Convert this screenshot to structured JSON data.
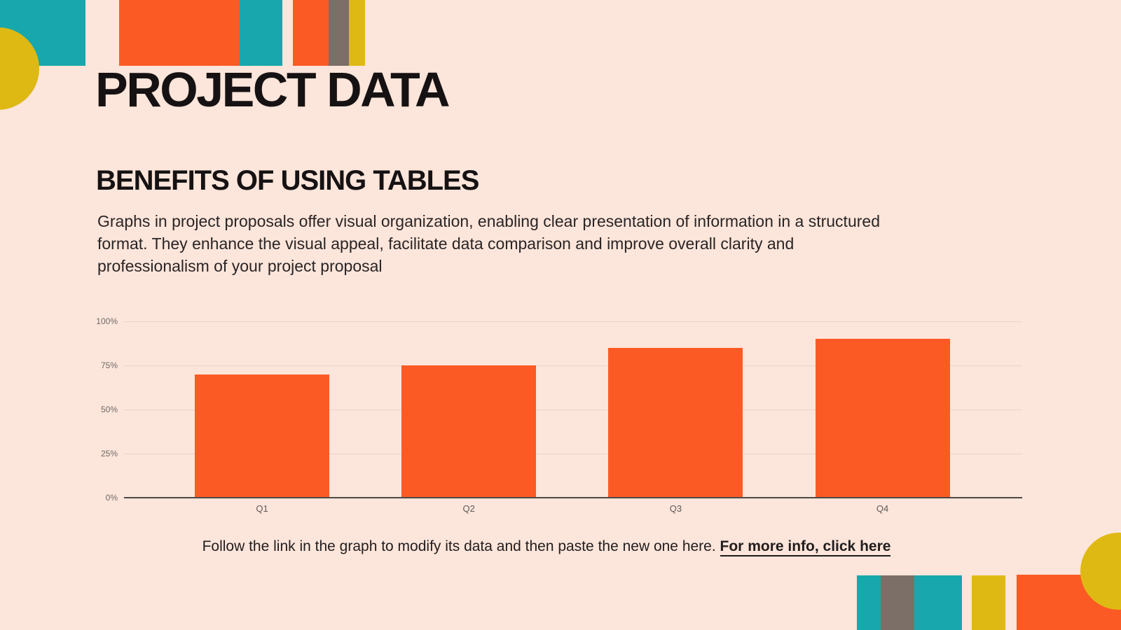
{
  "slide": {
    "title": "PROJECT DATA",
    "section_heading": "BENEFITS OF USING TABLES",
    "paragraph_lines": [
      "Graphs in project proposals offer visual organization, enabling clear presentation of information in a structured",
      "format. They enhance the visual appeal, facilitate data comparison and improve overall clarity and",
      "professionalism of your project proposal"
    ],
    "footer": {
      "prefix": "Follow the link in the graph to modify its data and then paste the new one here.",
      "link_text": "For more info, click here"
    }
  },
  "chart_data": {
    "type": "bar",
    "title": "",
    "xlabel": "",
    "ylabel": "",
    "categories": [
      "Q1",
      "Q2",
      "Q3",
      "Q4"
    ],
    "values": [
      70,
      75,
      85,
      90
    ],
    "unit": "%",
    "ylim": [
      0,
      100
    ],
    "y_tick_labels": [
      "0%",
      "25%",
      "50%",
      "75%",
      "100%"
    ],
    "grid": true,
    "legend": "none",
    "bar_color": "#fb5a25"
  },
  "theme": {
    "background": "#fce5da",
    "orange": "#fb5a25",
    "teal": "#18a7ac",
    "yellow": "#dfb913",
    "gray": "#7b6f68",
    "text_dark": "#161213",
    "axis_text": "#6e6a68",
    "gridline": "#e9d4ca",
    "axis_line": "#4c4947"
  }
}
